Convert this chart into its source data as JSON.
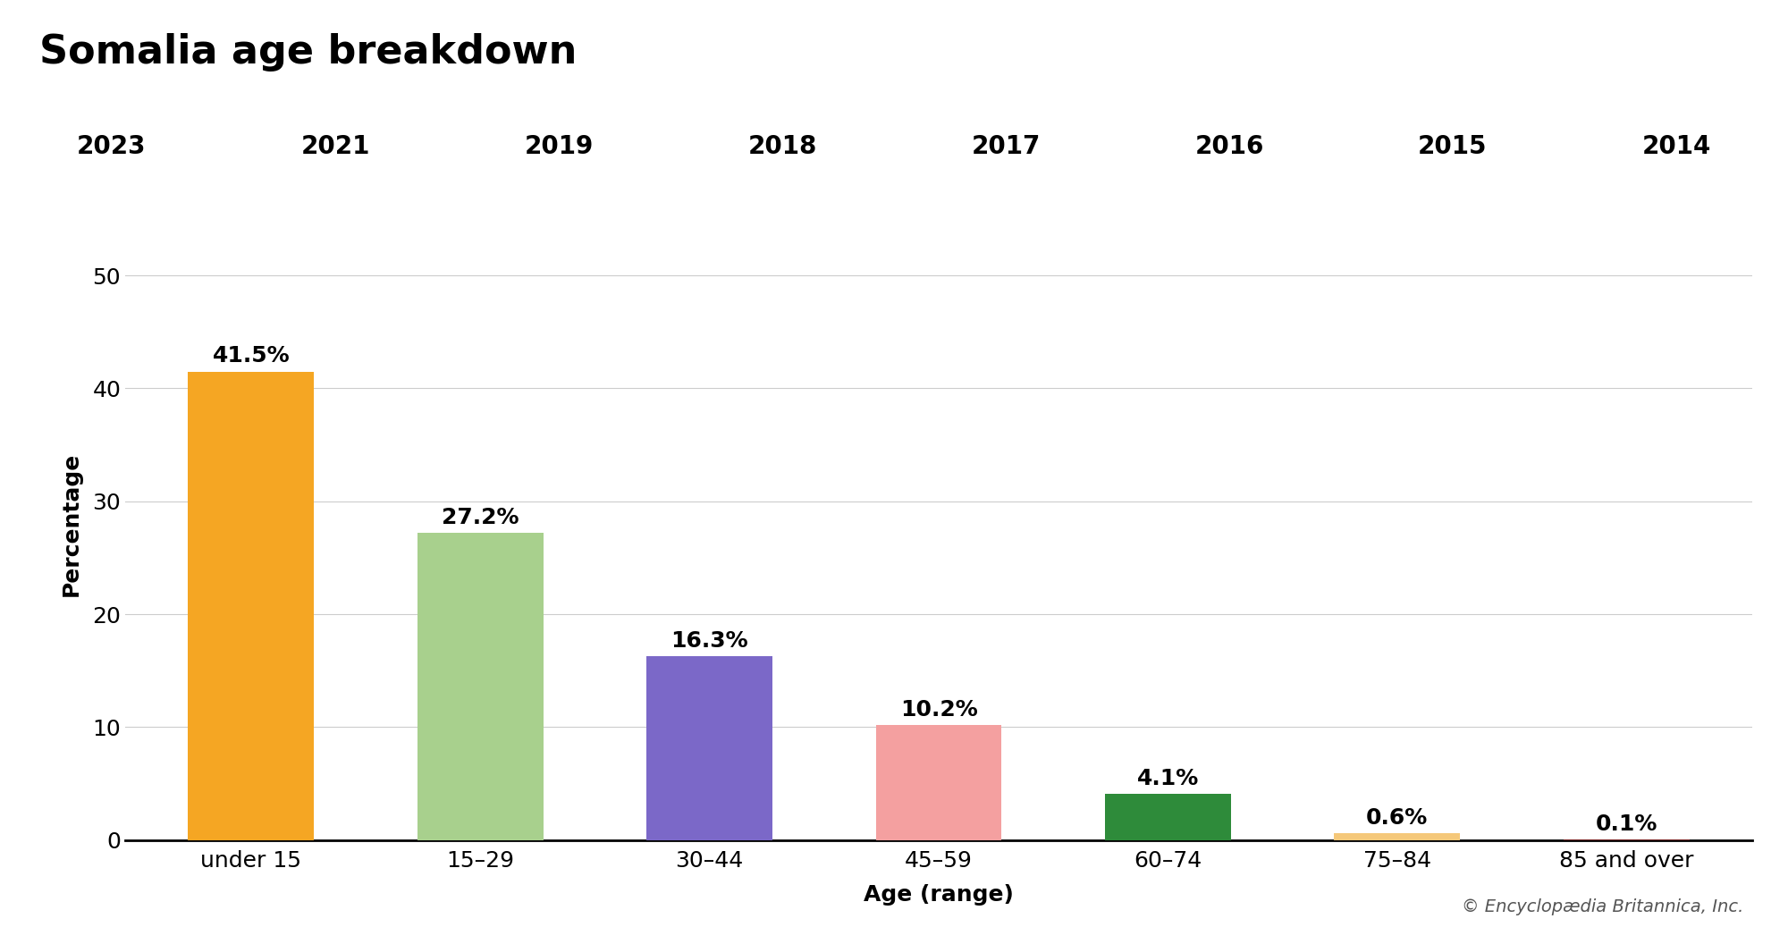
{
  "title": "Somalia age breakdown",
  "categories": [
    "under 15",
    "15–29",
    "30–44",
    "45–59",
    "60–74",
    "75–84",
    "85 and over"
  ],
  "values": [
    41.5,
    27.2,
    16.3,
    10.2,
    4.1,
    0.6,
    0.1
  ],
  "labels": [
    "41.5%",
    "27.2%",
    "16.3%",
    "10.2%",
    "4.1%",
    "0.6%",
    "0.1%"
  ],
  "bar_colors": [
    "#F5A623",
    "#A8D08D",
    "#7B68C8",
    "#F4A0A0",
    "#2E8B3A",
    "#F5C87A",
    "#7B2A2A"
  ],
  "ylabel": "Percentage",
  "xlabel": "Age (range)",
  "ylim": [
    0,
    56
  ],
  "yticks": [
    0,
    10,
    20,
    30,
    40,
    50
  ],
  "years": [
    "2023",
    "2021",
    "2019",
    "2018",
    "2017",
    "2016",
    "2015",
    "2014"
  ],
  "active_year": "2023",
  "copyright": "© Encyclopædia Britannica, Inc.",
  "bg_color": "#e8e8e8",
  "plot_bg_color": "#ffffff",
  "tab_bg_color": "#e0e0e0",
  "active_tab_color": "#ffffff",
  "title_fontsize": 32,
  "label_fontsize": 18,
  "tick_fontsize": 18,
  "year_fontsize": 20,
  "bar_label_fontsize": 18,
  "copyright_fontsize": 14
}
